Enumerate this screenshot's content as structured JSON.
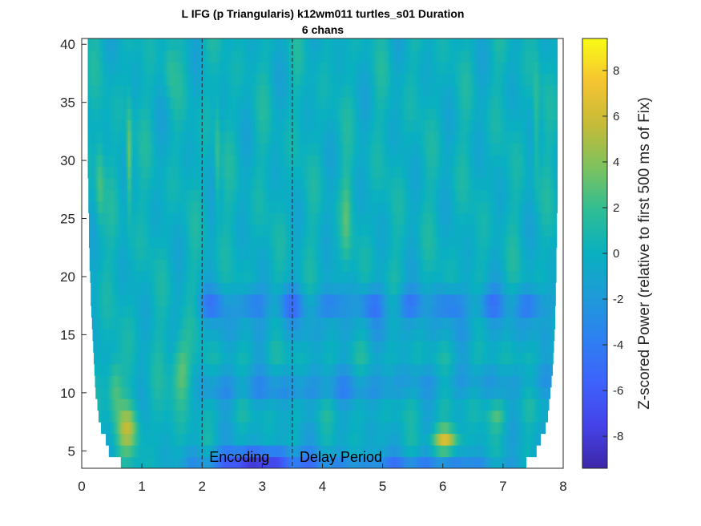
{
  "chart_data": {
    "type": "heatmap",
    "title": "L IFG (p Triangularis) k12wm011 turtles_s01 Duration",
    "subtitle": "6 chans",
    "xlim": [
      0,
      8
    ],
    "ylim": [
      3.5,
      40.5
    ],
    "x_ticks": [
      "0",
      "1",
      "2",
      "3",
      "4",
      "5",
      "6",
      "7",
      "8"
    ],
    "y_ticks": [
      "5",
      "10",
      "15",
      "20",
      "25",
      "30",
      "35",
      "40"
    ],
    "colorbar": {
      "label": "Z-scored Power (relative to first 500 ms of Fix)",
      "range": [
        -9.4,
        9.4
      ],
      "ticks": [
        "8",
        "6",
        "4",
        "2",
        "0",
        "-2",
        "-4",
        "-6",
        "-8"
      ],
      "colormap": "parula"
    },
    "event_markers": [
      {
        "x": 2.0,
        "label": "Encoding"
      },
      {
        "x": 3.5,
        "label": "Delay Period"
      }
    ],
    "frequencies_hz": [
      4,
      5,
      6,
      7,
      8,
      9,
      10,
      11,
      12,
      13,
      14,
      15,
      16,
      17,
      18,
      19,
      20,
      21,
      22,
      23,
      24,
      25,
      26,
      27,
      28,
      29,
      30,
      31,
      32,
      33,
      34,
      35,
      36,
      37,
      38,
      39,
      40
    ],
    "valid_time_start_s": [
      0.65,
      0.45,
      0.4,
      0.32,
      0.28,
      0.26,
      0.23,
      0.22,
      0.21,
      0.2,
      0.19,
      0.18,
      0.17,
      0.16,
      0.15,
      0.15,
      0.14,
      0.13,
      0.13,
      0.12,
      0.12,
      0.12,
      0.11,
      0.11,
      0.11,
      0.1,
      0.1,
      0.1,
      0.1,
      0.1,
      0.1,
      0.1,
      0.1,
      0.1,
      0.1,
      0.1,
      0.1
    ],
    "valid_time_end_s": [
      7.38,
      7.55,
      7.62,
      7.7,
      7.74,
      7.76,
      7.78,
      7.8,
      7.82,
      7.83,
      7.84,
      7.85,
      7.86,
      7.86,
      7.87,
      7.87,
      7.88,
      7.88,
      7.88,
      7.89,
      7.89,
      7.89,
      7.9,
      7.9,
      7.9,
      7.9,
      7.9,
      7.9,
      7.9,
      7.9,
      7.9,
      7.9,
      7.9,
      7.9,
      7.9,
      7.9,
      7.9
    ],
    "power_bands": {
      "beta_suppression_18hz": {
        "freq": [
          16.5,
          18.8
        ],
        "time": [
          1.9,
          7.9
        ],
        "z": -3.5
      },
      "low_freq_encoding_delay": {
        "freq": [
          3.5,
          6
        ],
        "time": [
          2.2,
          4.6
        ],
        "z": -7.5
      },
      "theta_burst_6s": {
        "freq": [
          5,
          7.5
        ],
        "time": [
          5.7,
          6.3
        ],
        "z": 6.5
      },
      "early_theta_0p8s": {
        "freq": [
          5,
          9
        ],
        "time": [
          0.5,
          1.0
        ],
        "z": 4.5
      },
      "gamma_streak_0p8s": {
        "freq": [
          26,
          33
        ],
        "time": [
          0.72,
          0.85
        ],
        "z": 4.5
      }
    }
  }
}
